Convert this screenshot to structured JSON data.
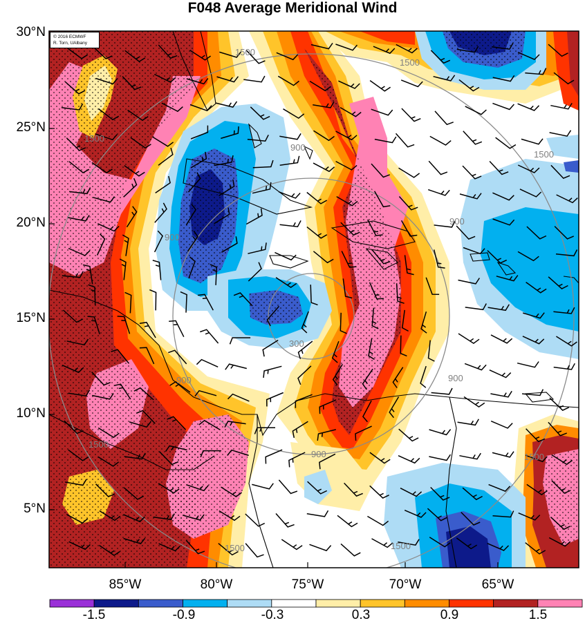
{
  "title": "F048 Average Meridional Wind",
  "credit": {
    "line1": "© 2016 ECMWF",
    "line2": "R. Torn, UAlbany"
  },
  "map": {
    "lon_range": [
      -89.0,
      -60.5
    ],
    "lat_range": [
      2.0,
      30.0
    ],
    "latitude_labels": [
      "30°N",
      "25°N",
      "20°N",
      "15°N",
      "10°N",
      "5°N"
    ],
    "longitude_labels": [
      "85°W",
      "80°W",
      "75°W",
      "70°W",
      "65°W"
    ],
    "range_ring_labels": [
      "300",
      "900",
      "1500"
    ],
    "range_ring_center": {
      "lon": -75.0,
      "lat": 15.0
    },
    "colors": {
      "land_outline": "#000000",
      "range_ring": "#8a8a8a",
      "wind_barb": "#000000",
      "stipple": "#000000"
    }
  },
  "colorbar": {
    "labels": [
      "-1.5",
      "-0.9",
      "-0.3",
      "0.3",
      "0.9",
      "1.5"
    ],
    "colors": [
      "#9a30d8",
      "#0d1a8a",
      "#3a5ccc",
      "#02b0ef",
      "#aedcf5",
      "#ffffff",
      "#ffeea8",
      "#ffc42a",
      "#ff8c00",
      "#ff3300",
      "#b22222",
      "#ff82b4"
    ]
  }
}
